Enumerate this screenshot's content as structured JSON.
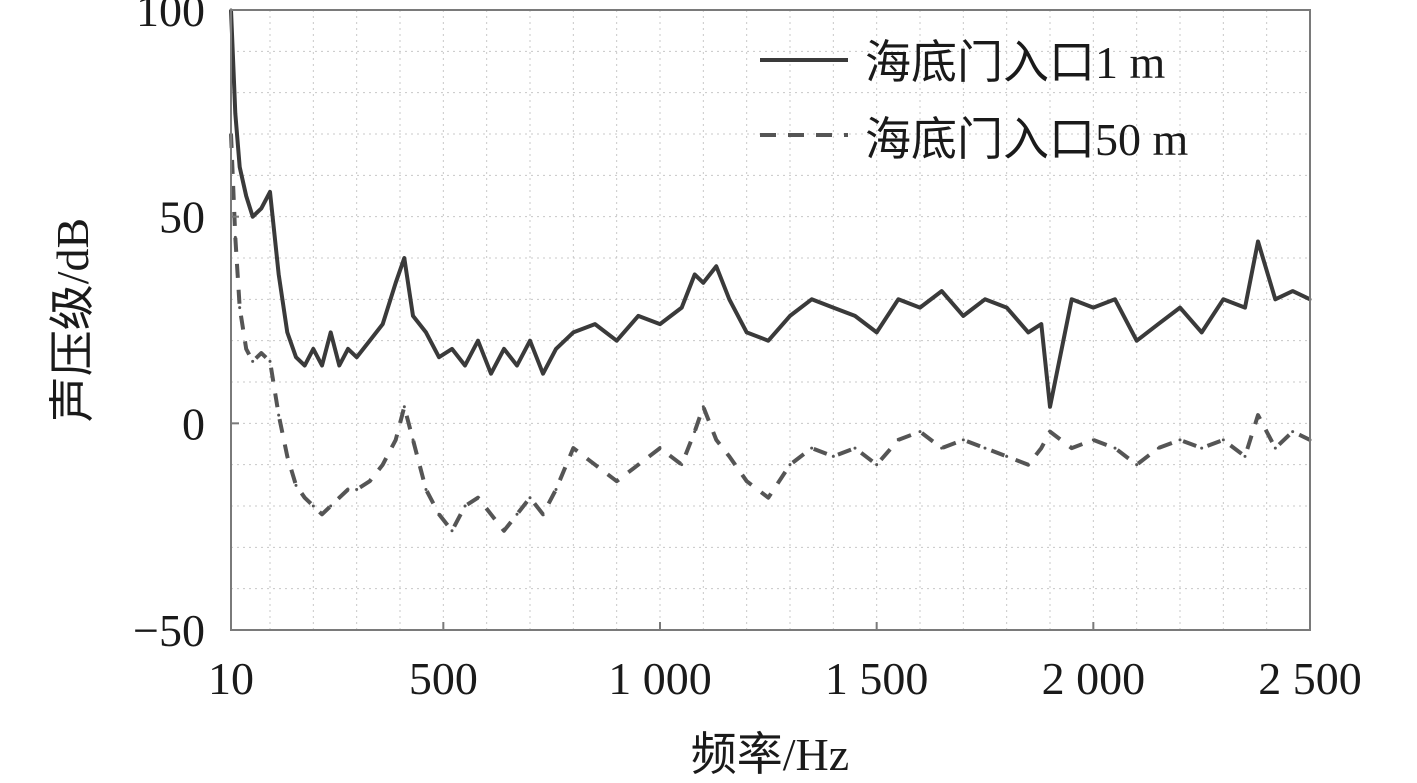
{
  "chart_data": {
    "type": "line",
    "title": "",
    "xlabel": "频率/Hz",
    "ylabel": "声压级/dB",
    "xlim": [
      10,
      2500
    ],
    "ylim": [
      -50,
      100
    ],
    "x_ticks": [
      10,
      500,
      1000,
      1500,
      2000,
      2500
    ],
    "x_tick_labels": [
      "10",
      "500",
      "1 000",
      "1 500",
      "2 000",
      "2 500"
    ],
    "y_ticks": [
      -50,
      0,
      50,
      100
    ],
    "y_tick_labels": [
      "−50",
      "0",
      "50",
      "100"
    ],
    "grid": true,
    "legend": "top-right",
    "colors": {
      "series_1m": "#3a3a3a",
      "series_50m": "#555555",
      "grid": "#c8c8c8",
      "frame": "#7a7a7a"
    },
    "x": [
      10,
      20,
      30,
      45,
      60,
      80,
      100,
      120,
      140,
      160,
      180,
      200,
      220,
      240,
      260,
      280,
      300,
      330,
      360,
      390,
      410,
      430,
      460,
      490,
      520,
      550,
      580,
      610,
      640,
      670,
      700,
      730,
      760,
      800,
      850,
      900,
      950,
      1000,
      1050,
      1080,
      1100,
      1130,
      1160,
      1200,
      1250,
      1300,
      1350,
      1400,
      1450,
      1500,
      1550,
      1600,
      1650,
      1700,
      1750,
      1800,
      1850,
      1880,
      1900,
      1950,
      2000,
      2050,
      2100,
      2150,
      2200,
      2250,
      2300,
      2350,
      2380,
      2420,
      2460,
      2500
    ],
    "series": [
      {
        "name": "海底门入口1 m",
        "style": "solid",
        "values": [
          100,
          75,
          62,
          55,
          50,
          52,
          56,
          36,
          22,
          16,
          14,
          18,
          14,
          22,
          14,
          18,
          16,
          20,
          24,
          34,
          40,
          26,
          22,
          16,
          18,
          14,
          20,
          12,
          18,
          14,
          20,
          12,
          18,
          22,
          24,
          20,
          26,
          24,
          28,
          36,
          34,
          38,
          30,
          22,
          20,
          26,
          30,
          28,
          26,
          22,
          30,
          28,
          32,
          26,
          30,
          28,
          22,
          24,
          4,
          30,
          28,
          30,
          20,
          24,
          28,
          22,
          30,
          28,
          44,
          30,
          32,
          30
        ]
      },
      {
        "name": "海底门入口50 m",
        "style": "dashed",
        "values": [
          70,
          45,
          28,
          18,
          15,
          17,
          15,
          2,
          -8,
          -15,
          -18,
          -20,
          -22,
          -20,
          -18,
          -16,
          -16,
          -14,
          -10,
          -4,
          4,
          -4,
          -16,
          -22,
          -26,
          -20,
          -18,
          -22,
          -26,
          -22,
          -18,
          -22,
          -16,
          -6,
          -10,
          -14,
          -10,
          -6,
          -10,
          -2,
          4,
          -4,
          -8,
          -14,
          -18,
          -10,
          -6,
          -8,
          -6,
          -10,
          -4,
          -2,
          -6,
          -4,
          -6,
          -8,
          -10,
          -6,
          -2,
          -6,
          -4,
          -6,
          -10,
          -6,
          -4,
          -6,
          -4,
          -8,
          2,
          -6,
          -2,
          -4
        ]
      }
    ]
  }
}
